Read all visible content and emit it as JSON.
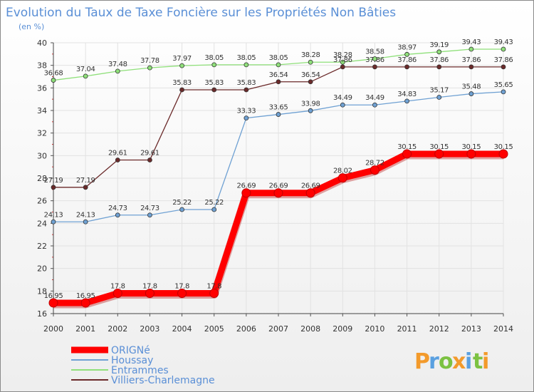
{
  "chart_data": {
    "type": "line",
    "title": "Evolution du Taux de Taxe Foncière sur les Propriétés Non Bâties",
    "ylabel": "(en %)",
    "xlabel": "",
    "ylim": [
      16,
      40
    ],
    "yticks": [
      16,
      18,
      20,
      22,
      24,
      26,
      28,
      30,
      32,
      34,
      36,
      38,
      40
    ],
    "categories": [
      "2000",
      "2001",
      "2002",
      "2003",
      "2004",
      "2005",
      "2006",
      "2007",
      "2008",
      "2009",
      "2010",
      "2011",
      "2012",
      "2013",
      "2014"
    ],
    "series": [
      {
        "name": "ORIGNé",
        "color": "#ff0000",
        "values": [
          16.95,
          16.95,
          17.8,
          17.8,
          17.8,
          17.8,
          26.69,
          26.69,
          26.69,
          28.02,
          28.72,
          30.15,
          30.15,
          30.15,
          30.15
        ],
        "labels": [
          "16.95",
          "16.95",
          "17.8",
          "17.8",
          "17.8",
          "17.8",
          "26.69",
          "26.69",
          "26.69",
          "28.02",
          "28.72",
          "30.15",
          "30.15",
          "30.15",
          "30.15"
        ]
      },
      {
        "name": "Houssay",
        "color": "#6fa1d3",
        "values": [
          24.13,
          24.13,
          24.73,
          24.73,
          25.22,
          25.22,
          33.33,
          33.65,
          33.98,
          34.49,
          34.49,
          34.83,
          35.17,
          35.48,
          35.65
        ],
        "labels": [
          "24.13",
          "24.13",
          "24.73",
          "24.73",
          "25.22",
          "25.22",
          "33.33",
          "33.65",
          "33.98",
          "34.49",
          "34.49",
          "34.83",
          "35.17",
          "35.48",
          "35.65"
        ]
      },
      {
        "name": "Entrammes",
        "color": "#8fe07a",
        "values": [
          36.68,
          37.04,
          37.48,
          37.78,
          37.97,
          38.05,
          38.05,
          38.05,
          38.28,
          38.28,
          38.58,
          38.97,
          39.19,
          39.43,
          39.43
        ],
        "labels": [
          "36.68",
          "37.04",
          "37.48",
          "37.78",
          "37.97",
          "38.05",
          "38.05",
          "38.05",
          "38.28",
          "38.28",
          "38.58",
          "38.97",
          "39.19",
          "39.43",
          "39.43"
        ]
      },
      {
        "name": "Villiers-Charlemagne",
        "color": "#6b2a2a",
        "values": [
          27.19,
          27.19,
          29.61,
          29.61,
          35.83,
          35.83,
          35.83,
          36.54,
          36.54,
          37.86,
          37.86,
          37.86,
          37.86,
          37.86,
          37.86
        ],
        "labels": [
          "27.19",
          "27.19",
          "29.61",
          "29.61",
          "35.83",
          "35.83",
          "35.83",
          "36.54",
          "36.54",
          "37.86",
          "37.86",
          "37.86",
          "37.86",
          "37.86",
          "37.86"
        ]
      }
    ],
    "legend_position": "bottom-left",
    "grid": true
  },
  "logo": {
    "text": "Proxiti",
    "letters": [
      "P",
      "r",
      "o",
      "x",
      "i",
      "t",
      "i"
    ],
    "colors": [
      "#f39a2b",
      "#5aa0e0",
      "#7cc242",
      "#f39a2b",
      "#5aa0e0",
      "#7cc242",
      "#f39a2b"
    ]
  }
}
